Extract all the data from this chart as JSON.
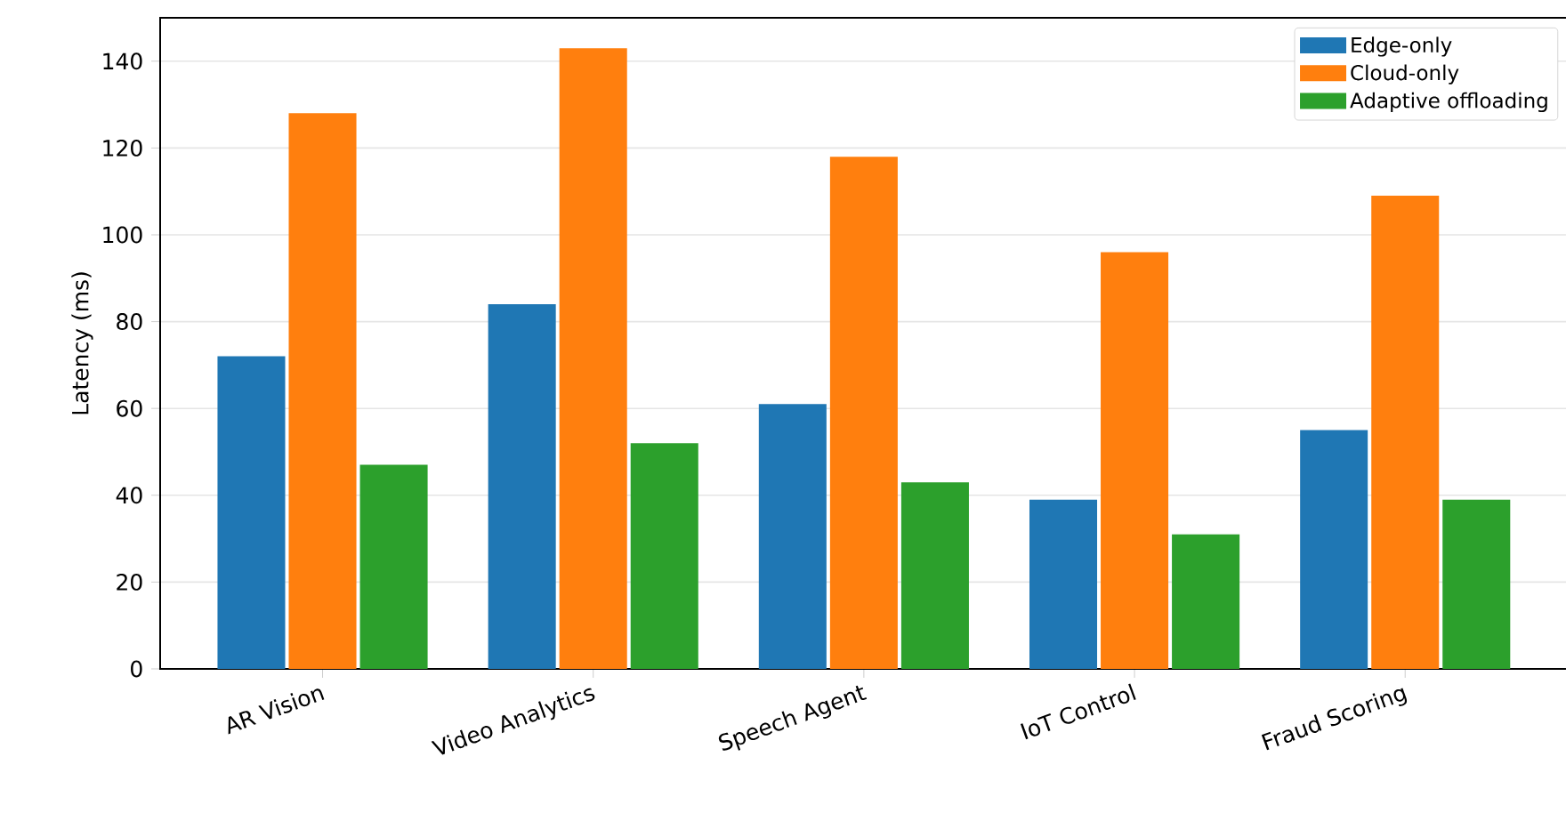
{
  "chart_data": {
    "type": "bar",
    "ylabel": "Latency (ms)",
    "categories": [
      "AR Vision",
      "Video Analytics",
      "Speech Agent",
      "IoT Control",
      "Fraud Scoring"
    ],
    "series": [
      {
        "name": "Edge-only",
        "color": "#1f77b4",
        "values": [
          72,
          84,
          61,
          39,
          55
        ]
      },
      {
        "name": "Cloud-only",
        "color": "#ff7f0e",
        "values": [
          128,
          143,
          118,
          96,
          109
        ]
      },
      {
        "name": "Adaptive offloading",
        "color": "#2ca02c",
        "values": [
          47,
          52,
          43,
          31,
          39
        ]
      }
    ],
    "ylim": [
      0,
      150
    ],
    "yticks": [
      0,
      20,
      40,
      60,
      80,
      100,
      120,
      140
    ],
    "grid": "y",
    "legend": "top right"
  }
}
